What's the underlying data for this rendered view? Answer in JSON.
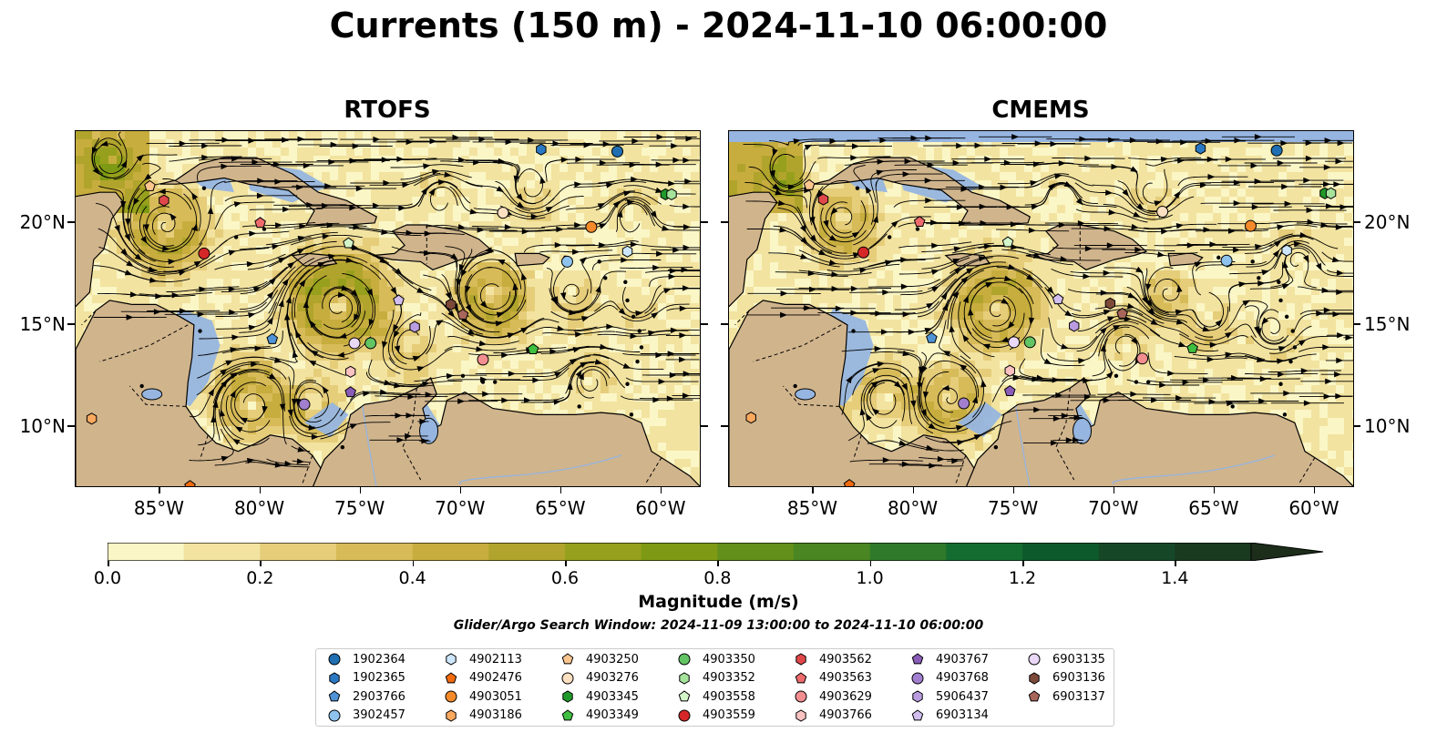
{
  "title": "Currents (150 m) - 2024-11-10 06:00:00",
  "panels": [
    {
      "name": "RTOFS"
    },
    {
      "name": "CMEMS"
    }
  ],
  "axes": {
    "lon_ticks": [
      "85°W",
      "80°W",
      "75°W",
      "70°W",
      "65°W",
      "60°W"
    ],
    "lat_ticks": [
      "20°N",
      "15°N",
      "10°N"
    ],
    "lon_range": [
      -89.2,
      -58.0
    ],
    "lat_range": [
      7.0,
      24.5
    ]
  },
  "colorbar": {
    "label": "Magnitude (m/s)",
    "ticks": [
      "0.0",
      "0.2",
      "0.4",
      "0.6",
      "0.8",
      "1.0",
      "1.2",
      "1.4"
    ],
    "range": [
      0.0,
      1.5
    ],
    "extend": "max",
    "colors": [
      "#fbf6c6",
      "#f2e3a0",
      "#e6cd7a",
      "#d7bb58",
      "#c7ad3e",
      "#b1a42c",
      "#97a01c",
      "#7e9a14",
      "#62901a",
      "#4a8622",
      "#2f7a2a",
      "#146c30",
      "#0d5a2c",
      "#164828",
      "#1a3a20",
      "#1c2e1a"
    ]
  },
  "search_window": "Glider/Argo Search Window: 2024-11-09 13:00:00 to 2024-11-10 06:00:00",
  "colors": {
    "ocean": "#96b5e0",
    "land": "#d0b48c",
    "current_low": "#fbf6c6",
    "current_high": "#1c2e1a"
  },
  "legend": [
    {
      "id": "1902364",
      "marker": "circle",
      "color": "#1f6fb2"
    },
    {
      "id": "1902365",
      "marker": "hexagon",
      "color": "#2b78c2"
    },
    {
      "id": "2903766",
      "marker": "pentagon",
      "color": "#4f93d6"
    },
    {
      "id": "3902457",
      "marker": "circle",
      "color": "#8ec3ee"
    },
    {
      "id": "4902113",
      "marker": "hexagon",
      "color": "#cde6fb"
    },
    {
      "id": "4902476",
      "marker": "pentagon",
      "color": "#f26b0f"
    },
    {
      "id": "4903051",
      "marker": "circle",
      "color": "#f58a2a"
    },
    {
      "id": "4903186",
      "marker": "hexagon",
      "color": "#fba95e"
    },
    {
      "id": "4903250",
      "marker": "pentagon",
      "color": "#fcc68f"
    },
    {
      "id": "4903276",
      "marker": "circle",
      "color": "#fde0c2"
    },
    {
      "id": "4903345",
      "marker": "hexagon",
      "color": "#1f9a2a"
    },
    {
      "id": "4903349",
      "marker": "pentagon",
      "color": "#3fbf3f"
    },
    {
      "id": "4903350",
      "marker": "circle",
      "color": "#63c463"
    },
    {
      "id": "4903352",
      "marker": "hexagon",
      "color": "#a5e39a"
    },
    {
      "id": "4903558",
      "marker": "pentagon",
      "color": "#d3f5c9"
    },
    {
      "id": "4903559",
      "marker": "circle",
      "color": "#d62728"
    },
    {
      "id": "4903562",
      "marker": "hexagon",
      "color": "#e0474a"
    },
    {
      "id": "4903563",
      "marker": "pentagon",
      "color": "#ee6a6d"
    },
    {
      "id": "4903629",
      "marker": "circle",
      "color": "#f28e90"
    },
    {
      "id": "4903766",
      "marker": "hexagon",
      "color": "#fbc2c2"
    },
    {
      "id": "4903767",
      "marker": "pentagon",
      "color": "#8a5cb8"
    },
    {
      "id": "4903768",
      "marker": "circle",
      "color": "#a17fce"
    },
    {
      "id": "5906437",
      "marker": "hexagon",
      "color": "#b99de0"
    },
    {
      "id": "6903134",
      "marker": "pentagon",
      "color": "#d2bff0"
    },
    {
      "id": "6903135",
      "marker": "circle",
      "color": "#ead8f8"
    },
    {
      "id": "6903136",
      "marker": "hexagon",
      "color": "#7d4a3a"
    },
    {
      "id": "6903137",
      "marker": "pentagon",
      "color": "#a8665a"
    }
  ],
  "platform_positions": [
    {
      "id": "1902364",
      "lon": -62.2,
      "lat": 23.5
    },
    {
      "id": "1902365",
      "lon": -66.0,
      "lat": 23.6
    },
    {
      "id": "2903766",
      "lon": -79.4,
      "lat": 14.3
    },
    {
      "id": "3902457",
      "lon": -64.7,
      "lat": 18.1
    },
    {
      "id": "4902113",
      "lon": -61.7,
      "lat": 18.6
    },
    {
      "id": "4902476",
      "lon": -83.5,
      "lat": 7.1
    },
    {
      "id": "4903051",
      "lon": -63.5,
      "lat": 19.8
    },
    {
      "id": "4903186",
      "lon": -88.4,
      "lat": 10.4
    },
    {
      "id": "4903250",
      "lon": -85.5,
      "lat": 21.8
    },
    {
      "id": "4903276",
      "lon": -67.9,
      "lat": 20.5
    },
    {
      "id": "4903345",
      "lon": -59.8,
      "lat": 21.4
    },
    {
      "id": "4903349",
      "lon": -66.4,
      "lat": 13.8
    },
    {
      "id": "4903350",
      "lon": -74.5,
      "lat": 14.1
    },
    {
      "id": "4903352",
      "lon": -59.5,
      "lat": 21.4
    },
    {
      "id": "4903558",
      "lon": -75.6,
      "lat": 19.0
    },
    {
      "id": "4903559",
      "lon": -82.8,
      "lat": 18.5
    },
    {
      "id": "4903562",
      "lon": -84.8,
      "lat": 21.1
    },
    {
      "id": "4903563",
      "lon": -80.0,
      "lat": 20.0
    },
    {
      "id": "4903629",
      "lon": -68.9,
      "lat": 13.3
    },
    {
      "id": "4903766",
      "lon": -75.5,
      "lat": 12.7
    },
    {
      "id": "4903767",
      "lon": -75.5,
      "lat": 11.7
    },
    {
      "id": "4903768",
      "lon": -77.8,
      "lat": 11.1
    },
    {
      "id": "5906437",
      "lon": -72.3,
      "lat": 14.9
    },
    {
      "id": "6903134",
      "lon": -73.1,
      "lat": 16.2
    },
    {
      "id": "6903135",
      "lon": -75.3,
      "lat": 14.1
    },
    {
      "id": "6903136",
      "lon": -70.5,
      "lat": 16.0
    },
    {
      "id": "6903137",
      "lon": -69.9,
      "lat": 15.5
    }
  ]
}
